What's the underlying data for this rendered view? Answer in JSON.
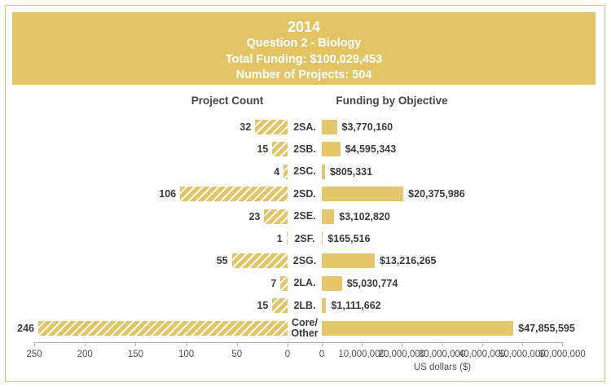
{
  "header": {
    "title": "2014",
    "subtitle": "Question 2 - Biology",
    "total_funding": "Total Funding: $100,029,453",
    "num_projects": "Number of Projects: 504"
  },
  "chart": {
    "left_title": "Project Count",
    "right_title": "Funding by Objective",
    "x_axis_label": "US dollars ($)"
  },
  "chart_data": {
    "type": "bar",
    "orientation": "horizontal-mirrored",
    "categories": [
      "2SA.",
      "2SB.",
      "2SC.",
      "2SD.",
      "2SE.",
      "2SF.",
      "2SG.",
      "2LA.",
      "2LB.",
      "Core/Other"
    ],
    "category_display": [
      "2SA.",
      "2SB.",
      "2SC.",
      "2SD.",
      "2SE.",
      "2SF.",
      "2SG.",
      "2LA.",
      "2LB.",
      "Core/\nOther"
    ],
    "series": [
      {
        "name": "Project Count",
        "values": [
          32,
          15,
          4,
          106,
          23,
          1,
          55,
          7,
          15,
          246
        ]
      },
      {
        "name": "Funding by Objective",
        "values": [
          3770160,
          4595343,
          805331,
          20375986,
          3102820,
          165516,
          13216265,
          5030774,
          1111662,
          47855595
        ]
      }
    ],
    "count_display": [
      "32",
      "15",
      "4",
      "106",
      "23",
      "1",
      "55",
      "7",
      "15",
      "246"
    ],
    "funding_display": [
      "$3,770,160",
      "$4,595,343",
      "$805,331",
      "$20,375,986",
      "$3,102,820",
      "$165,516",
      "$13,216,265",
      "$5,030,774",
      "$1,111,662",
      "$47,855,595"
    ],
    "left_axis": {
      "range": [
        250,
        0
      ],
      "ticks": [
        "250",
        "200",
        "150",
        "100",
        "50",
        "0"
      ]
    },
    "right_axis": {
      "range": [
        0,
        60000000
      ],
      "ticks": [
        "0",
        "10,000,000",
        "20,000,000",
        "30,000,000",
        "40,000,000",
        "50,000,000",
        "60,000,000"
      ]
    },
    "xlabel": "US dollars ($)",
    "title": "2014 Question 2 - Biology",
    "legend": "none",
    "grid": "off",
    "colors": {
      "gold": "#e2c464",
      "bar_gold": "#e3c76a",
      "frame_border": "#dcc26a",
      "text_dark": "#3b3b3b",
      "axis": "#b5b5b5",
      "header_text": "#ffffff"
    }
  }
}
